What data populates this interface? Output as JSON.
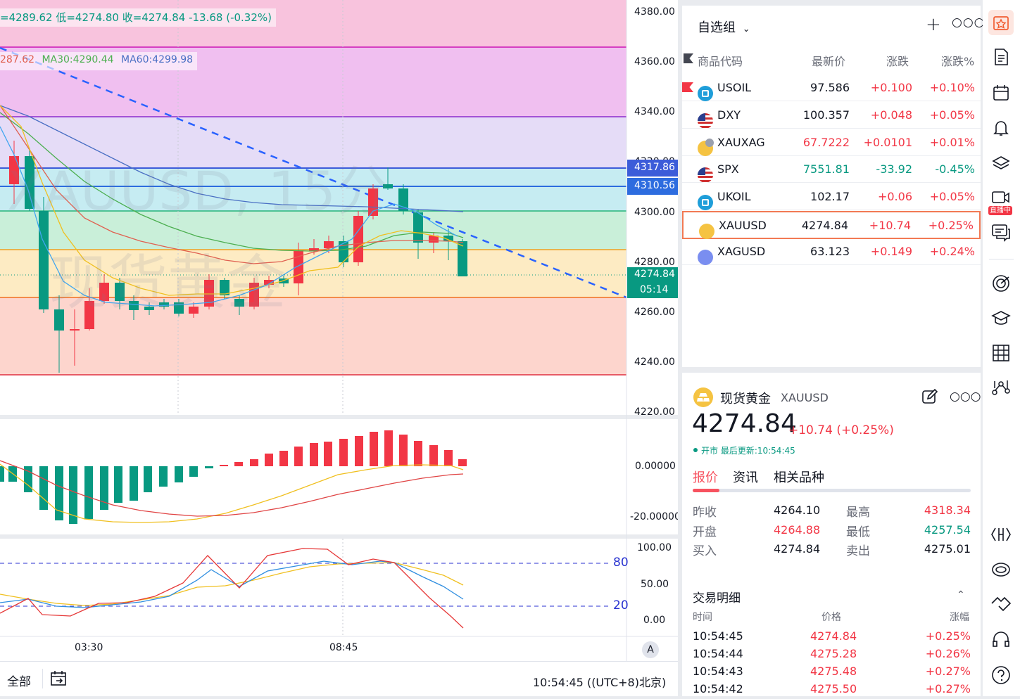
{
  "chart": {
    "ohlc_text": "=4289.62 低=4274.80 收=4274.84 -13.68 (-0.32%)",
    "ma_text_1": "287.62",
    "ma_text_2": "MA30:4290.44",
    "ma_text_3": "MA60:4299.98",
    "watermark_symbol": "XAUUSD, 15分",
    "watermark_name": "现货黄金",
    "price_ticks": [
      "4380.00",
      "4360.00",
      "4340.00",
      "4320.00",
      "4300.00",
      "4280.00",
      "4260.00",
      "4240.00",
      "4220.00"
    ],
    "price_label_1": "4317.86",
    "price_label_2": "4310.56",
    "last_price_label": "4274.84",
    "countdown_label": "05:14",
    "macd_ticks": [
      "0.00000",
      "-20.00000"
    ],
    "kdj_ticks": [
      "100.00",
      "50.00",
      "0.00"
    ],
    "kdj_level_high": "80",
    "kdj_level_low": "20",
    "time_ticks": [
      "03:30",
      "08:45"
    ],
    "auto_scale_label": "A",
    "range_all_label": "全部",
    "clock_text": "10:54:45 ((UTC+8)北京)",
    "colors": {
      "up": "#f23645",
      "down": "#089981"
    }
  },
  "watchlist": {
    "group_label": "自选组",
    "headers": [
      "商品代码",
      "最新价",
      "涨跌",
      "涨跌%"
    ],
    "rows": [
      {
        "symbol": "USOIL",
        "last": "97.586",
        "chg": "+0.100",
        "pct": "+0.10%",
        "icon": "oil-icon",
        "flag": true
      },
      {
        "symbol": "DXY",
        "last": "100.357",
        "chg": "+0.048",
        "pct": "+0.05%",
        "icon": "us-flag-icon"
      },
      {
        "symbol": "XAUXAG",
        "last": "67.7222",
        "chg": "+0.0101",
        "pct": "+0.01%",
        "icon": "gold-silver-icon"
      },
      {
        "symbol": "SPX",
        "last": "7551.81",
        "chg": "-33.92",
        "pct": "-0.45%",
        "icon": "us-flag-icon"
      },
      {
        "symbol": "UKOIL",
        "last": "102.17",
        "chg": "+0.06",
        "pct": "+0.05%",
        "icon": "oil-icon"
      },
      {
        "symbol": "XAUUSD",
        "last": "4274.84",
        "chg": "+10.74",
        "pct": "+0.25%",
        "icon": "gold-icon",
        "selected": true
      },
      {
        "symbol": "XAGUSD",
        "last": "63.123",
        "chg": "+0.149",
        "pct": "+0.24%",
        "icon": "silver-icon"
      }
    ]
  },
  "detail": {
    "name": "现货黄金",
    "symbol": "XAUUSD",
    "price": "4274.84",
    "change": "+10.74 (+0.25%)",
    "status": "开市 最后更新:10:54:45",
    "tabs": [
      "报价",
      "资讯",
      "相关品种"
    ],
    "stats": [
      {
        "label": "昨收",
        "value": "4264.10",
        "label2": "最高",
        "value2": "4318.34"
      },
      {
        "label": "开盘",
        "value": "4264.88",
        "label2": "最低",
        "value2": "4257.54"
      },
      {
        "label": "买入",
        "value": "4274.84",
        "label2": "卖出",
        "value2": "4275.01"
      }
    ],
    "trades_title": "交易明细",
    "trades_headers": [
      "时间",
      "价格",
      "涨幅"
    ],
    "trades": [
      {
        "time": "10:54:45",
        "price": "4274.84",
        "pct": "+0.25%"
      },
      {
        "time": "10:54:44",
        "price": "4275.28",
        "pct": "+0.26%"
      },
      {
        "time": "10:54:43",
        "price": "4275.48",
        "pct": "+0.27%"
      },
      {
        "time": "10:54:42",
        "price": "4275.50",
        "pct": "+0.27%"
      }
    ]
  },
  "sidebar": {
    "live_badge": "直播中"
  }
}
